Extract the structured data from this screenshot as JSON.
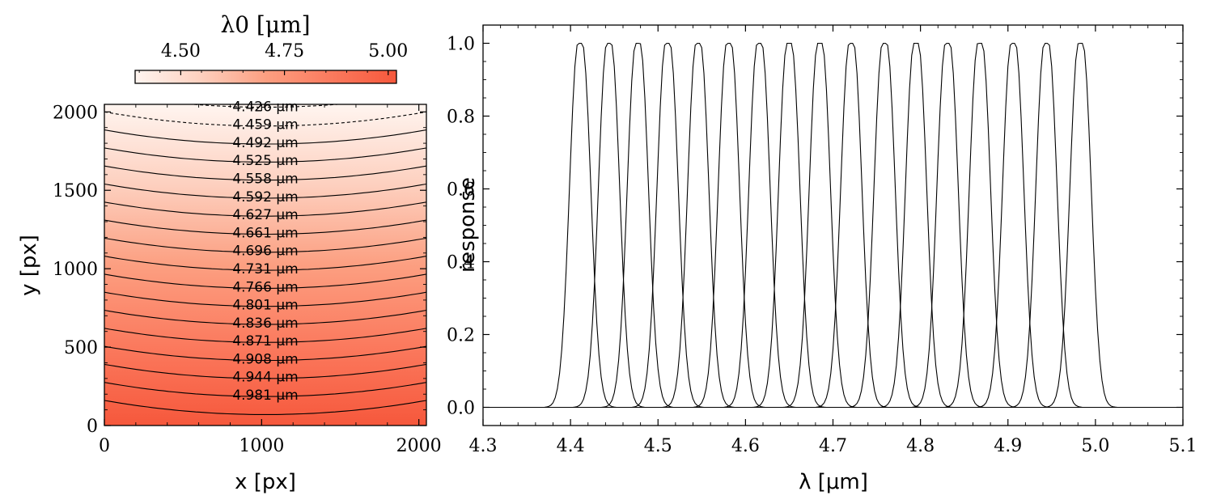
{
  "chart_data": [
    {
      "type": "heatmap",
      "title": "",
      "xlabel": "x [px]",
      "ylabel": "y [px]",
      "xlim": [
        0,
        2048
      ],
      "ylim": [
        0,
        2048
      ],
      "xticks": [
        0,
        1000,
        2000
      ],
      "yticks": [
        0,
        500,
        1000,
        1500,
        2000
      ],
      "colorbar": {
        "label": "λ0 [μm]",
        "range": [
          4.39,
          5.02
        ],
        "ticks": [
          4.5,
          4.75,
          5.0
        ],
        "tick_labels": [
          "4.50",
          "4.75",
          "5.00"
        ],
        "colormap": [
          "#fff5f0",
          "#fdd0bf",
          "#fc9f81",
          "#fb7a5e",
          "#f6583c"
        ]
      },
      "contour_unit": "μm",
      "contours": [
        {
          "value": 4.426,
          "label": "4.426",
          "y_center": 1910,
          "y_edge": 2000,
          "dashed": true
        },
        {
          "value": 4.459,
          "label": "4.459",
          "y_center": 1795,
          "y_edge": 1885,
          "dashed": false
        },
        {
          "value": 4.492,
          "label": "4.492",
          "y_center": 1680,
          "y_edge": 1770,
          "dashed": false
        },
        {
          "value": 4.525,
          "label": "4.525",
          "y_center": 1565,
          "y_edge": 1655,
          "dashed": false
        },
        {
          "value": 4.558,
          "label": "4.558",
          "y_center": 1450,
          "y_edge": 1540,
          "dashed": false
        },
        {
          "value": 4.592,
          "label": "4.592",
          "y_center": 1335,
          "y_edge": 1425,
          "dashed": false
        },
        {
          "value": 4.627,
          "label": "4.627",
          "y_center": 1220,
          "y_edge": 1310,
          "dashed": false
        },
        {
          "value": 4.661,
          "label": "4.661",
          "y_center": 1105,
          "y_edge": 1195,
          "dashed": false
        },
        {
          "value": 4.696,
          "label": "4.696",
          "y_center": 990,
          "y_edge": 1080,
          "dashed": false
        },
        {
          "value": 4.731,
          "label": "4.731",
          "y_center": 875,
          "y_edge": 965,
          "dashed": false
        },
        {
          "value": 4.766,
          "label": "4.766",
          "y_center": 760,
          "y_edge": 850,
          "dashed": false
        },
        {
          "value": 4.801,
          "label": "4.801",
          "y_center": 645,
          "y_edge": 735,
          "dashed": false
        },
        {
          "value": 4.836,
          "label": "4.836",
          "y_center": 530,
          "y_edge": 620,
          "dashed": false
        },
        {
          "value": 4.871,
          "label": "4.871",
          "y_center": 415,
          "y_edge": 505,
          "dashed": false
        },
        {
          "value": 4.908,
          "label": "4.908",
          "y_center": 300,
          "y_edge": 390,
          "dashed": false
        },
        {
          "value": 4.944,
          "label": "4.944",
          "y_center": 185,
          "y_edge": 275,
          "dashed": false
        },
        {
          "value": 4.981,
          "label": "4.981",
          "y_center": 70,
          "y_edge": 160,
          "dashed": false
        }
      ],
      "top_dashed_contour": {
        "y_center": 2030,
        "y_edge": 2120
      }
    },
    {
      "type": "line",
      "title": "",
      "xlabel": "λ [μm]",
      "ylabel": "response",
      "xlim": [
        4.3,
        5.1
      ],
      "ylim": [
        -0.05,
        1.05
      ],
      "xticks": [
        4.3,
        4.4,
        4.5,
        4.6,
        4.7,
        4.8,
        4.9,
        5.0,
        5.1
      ],
      "xtick_labels": [
        "4.3",
        "4.4",
        "4.5",
        "4.6",
        "4.7",
        "4.8",
        "4.9",
        "5.0",
        "5.1"
      ],
      "yticks": [
        0.0,
        0.2,
        0.4,
        0.6,
        0.8,
        1.0
      ],
      "ytick_labels": [
        "0.0",
        "0.2",
        "0.4",
        "0.6",
        "0.8",
        "1.0"
      ],
      "series_shape": "flat-top gaussian, peak 1.0, baseline 0.0",
      "peak_width_um": 0.022,
      "series": [
        {
          "name": "4.411",
          "center": 4.411
        },
        {
          "name": "4.444",
          "center": 4.444
        },
        {
          "name": "4.477",
          "center": 4.477
        },
        {
          "name": "4.511",
          "center": 4.511
        },
        {
          "name": "4.546",
          "center": 4.546
        },
        {
          "name": "4.581",
          "center": 4.581
        },
        {
          "name": "4.616",
          "center": 4.616
        },
        {
          "name": "4.650",
          "center": 4.65
        },
        {
          "name": "4.685",
          "center": 4.685
        },
        {
          "name": "4.721",
          "center": 4.721
        },
        {
          "name": "4.759",
          "center": 4.759
        },
        {
          "name": "4.795",
          "center": 4.795
        },
        {
          "name": "4.831",
          "center": 4.831
        },
        {
          "name": "4.868",
          "center": 4.868
        },
        {
          "name": "4.906",
          "center": 4.906
        },
        {
          "name": "4.944",
          "center": 4.944
        },
        {
          "name": "4.983",
          "center": 4.983
        }
      ]
    }
  ],
  "colors": {
    "axis": "#000000",
    "line": "#000000",
    "background": "#ffffff"
  }
}
